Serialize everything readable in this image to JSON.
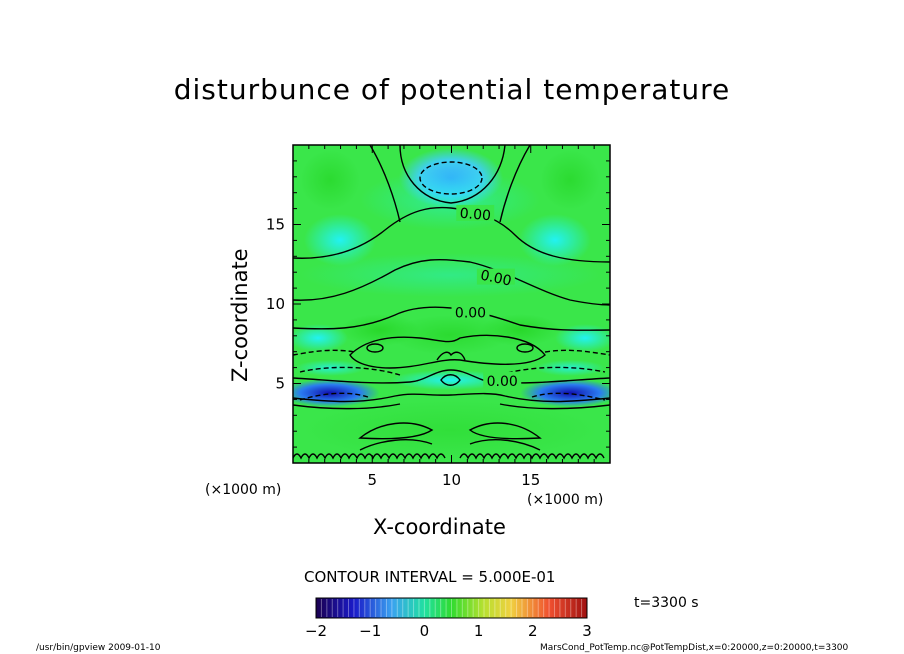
{
  "chart_data": {
    "type": "heatmap",
    "title": "disturbunce of potential temperature",
    "xlabel": "X-coordinate",
    "ylabel": "Z-coordinate",
    "x_unit": "(×1000 m)",
    "z_unit": "(×1000 m)",
    "xlim": [
      0,
      20
    ],
    "ylim": [
      0,
      20
    ],
    "x_ticks": [
      5,
      10,
      15
    ],
    "y_ticks": [
      5,
      10,
      15
    ],
    "contour_labels": [
      {
        "text": "0.00",
        "x": 11.5,
        "z": 15.6
      },
      {
        "text": "0.00",
        "x": 12.8,
        "z": 11.6
      },
      {
        "text": "0.00",
        "x": 11.2,
        "z": 9.4
      },
      {
        "text": "0.00",
        "x": 13.2,
        "z": 5.1
      }
    ],
    "contour_interval_text": "CONTOUR INTERVAL = 5.000E-01",
    "colorbar": {
      "range": [
        -2,
        3
      ],
      "ticks": [
        "−2",
        "−1",
        "0",
        "1",
        "2",
        "3"
      ]
    },
    "time_text": "t=3300 s"
  },
  "footer": {
    "left": "/usr/bin/gpview   2009-01-10",
    "right": "MarsCond_PotTemp.nc@PotTempDist,x=0:20000,z=0:20000,t=3300"
  }
}
